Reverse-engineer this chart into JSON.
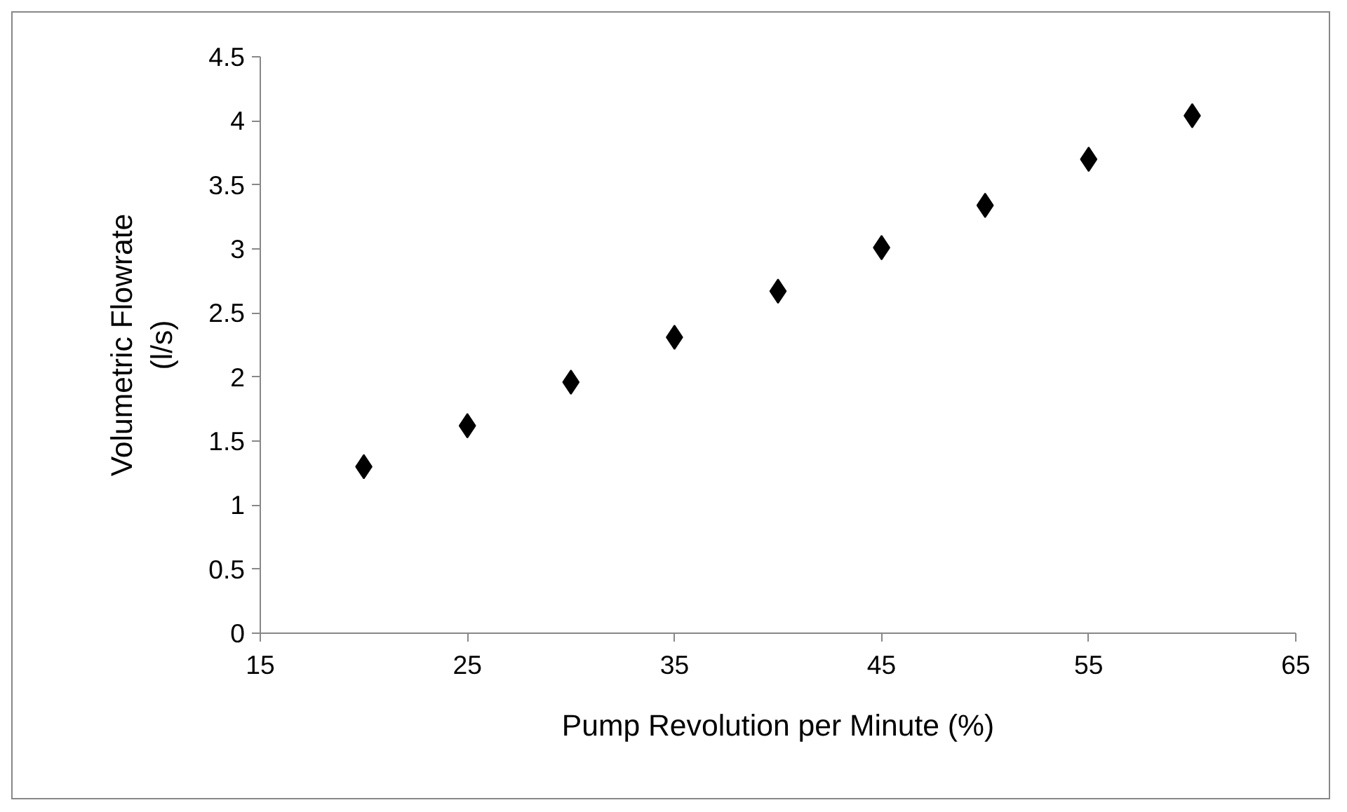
{
  "chart_data": {
    "type": "scatter",
    "xlabel": "Pump Revolution per Minute (%)",
    "ylabel": "Volumetric Flowrate\n(l/s)",
    "x": [
      20,
      25,
      30,
      35,
      40,
      45,
      50,
      55,
      60
    ],
    "series": [
      {
        "color": "#000000",
        "values": [
          1.3,
          1.62,
          1.96,
          2.31,
          2.67,
          3.01,
          3.34,
          3.7,
          4.04
        ]
      }
    ],
    "xlim": [
      15,
      65
    ],
    "xticks": [
      15,
      25,
      35,
      45,
      55,
      65
    ],
    "ylim": [
      0,
      4.5
    ],
    "yticks": [
      0,
      0.5,
      1,
      1.5,
      2,
      2.5,
      3,
      3.5,
      4,
      4.5
    ],
    "grid": false,
    "marker": "diamond"
  }
}
